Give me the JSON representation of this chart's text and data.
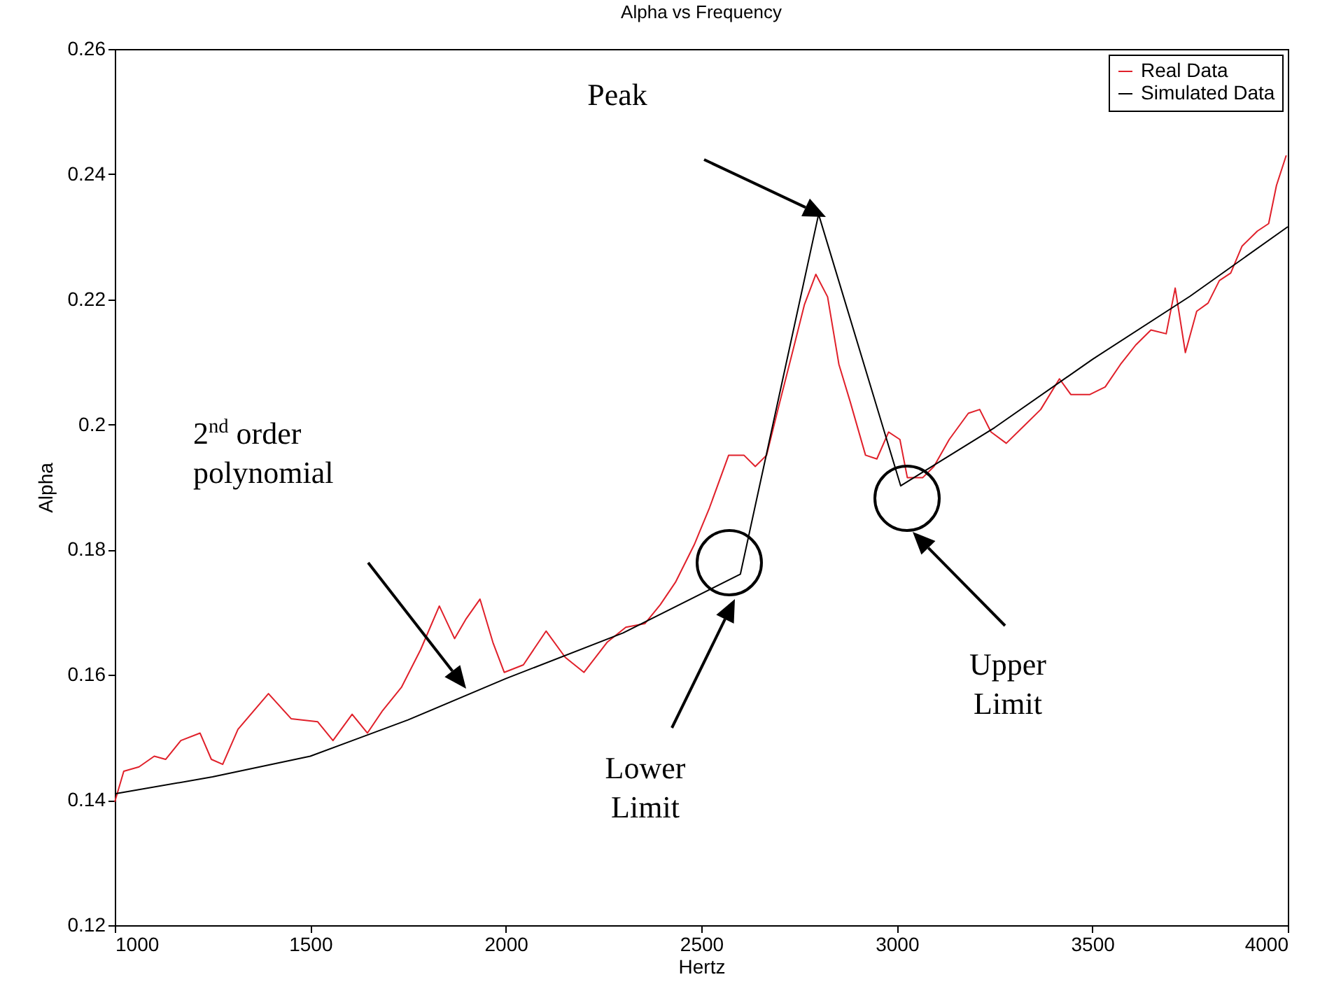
{
  "chart_data": {
    "type": "line",
    "title": "Alpha vs Frequency",
    "xlabel": "Hertz",
    "ylabel": "Alpha",
    "xlim": [
      1000,
      4000
    ],
    "xticks": [
      1000,
      1500,
      2000,
      2500,
      3000,
      3500,
      4000
    ],
    "ylim": [
      0.12,
      0.26
    ],
    "yticks": [
      0.12,
      0.14,
      0.16,
      0.18,
      0.2,
      0.22,
      0.24,
      0.26
    ],
    "grid": false,
    "legend": "top right",
    "line_style": "solid",
    "series": [
      {
        "name": "Real Data",
        "color": "#e0202a",
        "x": [
          1000,
          1023,
          1062,
          1101,
          1130,
          1169,
          1218,
          1247,
          1276,
          1315,
          1393,
          1451,
          1519,
          1558,
          1607,
          1646,
          1685,
          1733,
          1782,
          1830,
          1869,
          1899,
          1934,
          1967,
          1996,
          2045,
          2103,
          2152,
          2200,
          2259,
          2307,
          2356,
          2395,
          2434,
          2482,
          2521,
          2570,
          2609,
          2638,
          2667,
          2696,
          2735,
          2764,
          2793,
          2823,
          2852,
          2881,
          2920,
          2949,
          2979,
          3008,
          3027,
          3066,
          3095,
          3134,
          3183,
          3212,
          3241,
          3280,
          3319,
          3368,
          3416,
          3445,
          3494,
          3533,
          3572,
          3611,
          3650,
          3689,
          3712,
          3738,
          3767,
          3796,
          3825,
          3854,
          3883,
          3922,
          3951,
          3971,
          3996
        ],
        "values": [
          0.1397,
          0.1446,
          0.1453,
          0.147,
          0.1465,
          0.1495,
          0.1507,
          0.1465,
          0.1457,
          0.1513,
          0.157,
          0.153,
          0.1525,
          0.1495,
          0.1537,
          0.1507,
          0.1543,
          0.158,
          0.164,
          0.171,
          0.1658,
          0.169,
          0.1721,
          0.1652,
          0.1604,
          0.1616,
          0.167,
          0.1628,
          0.1604,
          0.1652,
          0.1676,
          0.1682,
          0.1712,
          0.1748,
          0.1808,
          0.1867,
          0.1951,
          0.1951,
          0.1933,
          0.1951,
          0.2024,
          0.212,
          0.2192,
          0.224,
          0.2204,
          0.2096,
          0.2036,
          0.1951,
          0.1945,
          0.1988,
          0.1976,
          0.1915,
          0.1915,
          0.1933,
          0.1976,
          0.2018,
          0.2024,
          0.1988,
          0.197,
          0.1994,
          0.2024,
          0.2073,
          0.2048,
          0.2048,
          0.206,
          0.2096,
          0.2127,
          0.2151,
          0.2145,
          0.2218,
          0.2115,
          0.2181,
          0.2194,
          0.223,
          0.2242,
          0.2285,
          0.2309,
          0.2321,
          0.2382,
          0.243
        ]
      },
      {
        "name": "Simulated Data",
        "color": "#000000",
        "x": [
          1000,
          1250,
          1500,
          1750,
          2000,
          2300,
          2600,
          2800,
          3010,
          3250,
          3500,
          3750,
          4000
        ],
        "values": [
          0.141,
          0.1437,
          0.147,
          0.1528,
          0.1594,
          0.1667,
          0.1761,
          0.2336,
          0.1902,
          0.1995,
          0.2104,
          0.2205,
          0.2316
        ]
      }
    ],
    "annotations": [
      "Peak",
      "2$^{nd}$ order polynomial",
      "Lower Limit",
      "Upper Limit"
    ]
  }
}
